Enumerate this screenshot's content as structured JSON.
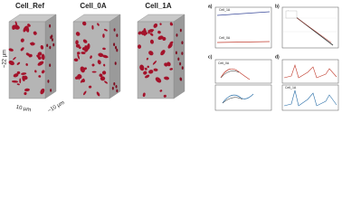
{
  "renders": [
    {
      "label": "Cell_Ref"
    },
    {
      "label": "Cell_0A"
    },
    {
      "label": "Cell_1A"
    }
  ],
  "dimensions": {
    "height": "~22 µm",
    "width": "10 µm",
    "depth": "~10 µm"
  },
  "panels": [
    {
      "letter": "a)",
      "labels": [
        "Cell_1A",
        "Cell_0A"
      ]
    },
    {
      "letter": "b)"
    },
    {
      "letter": "c)",
      "labels": [
        "Cell_0A"
      ]
    },
    {
      "letter": "d)",
      "labels": [
        "Cell_1A"
      ]
    }
  ]
}
